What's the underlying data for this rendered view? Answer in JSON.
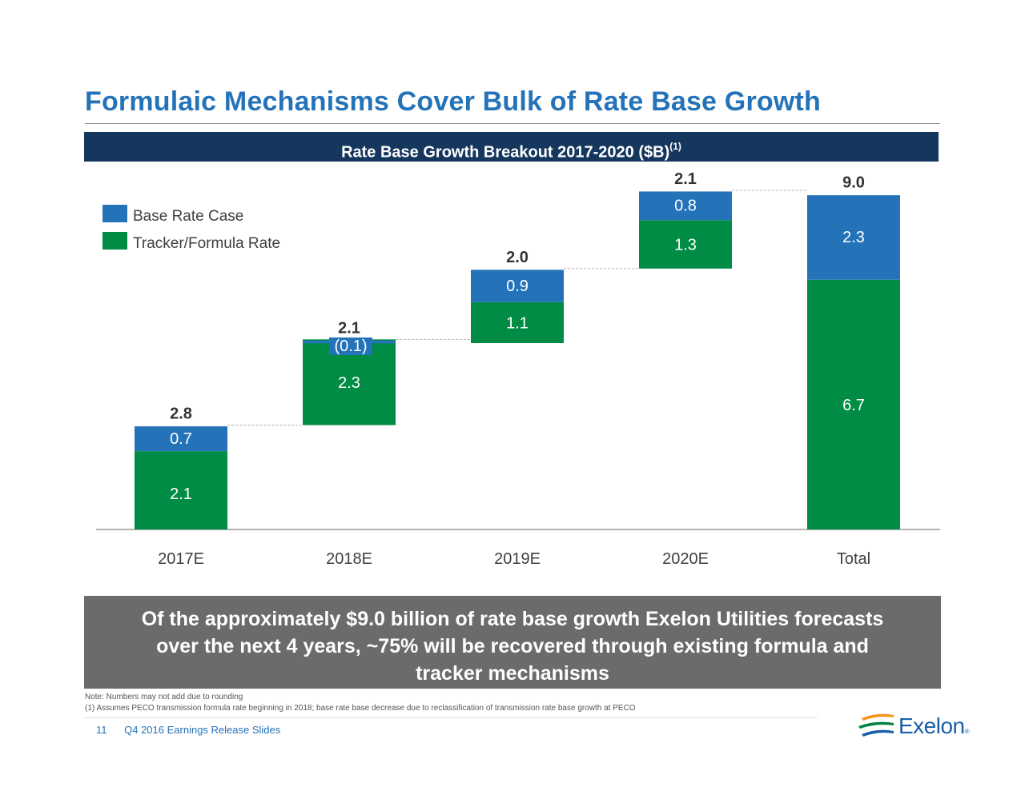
{
  "title": "Formulaic Mechanisms Cover Bulk of Rate Base Growth",
  "chart_banner": {
    "text": "Rate Base Growth Breakout 2017-2020 ($B)",
    "footnote_ref": "(1)"
  },
  "colors": {
    "base_rate": "#2473b9",
    "tracker": "#008c45",
    "banner": "#15365d",
    "callout": "#6b6b6b"
  },
  "chart_data": {
    "type": "bar",
    "subtype": "stacked waterfall",
    "title": "Rate Base Growth Breakout 2017-2020 ($B)",
    "categories": [
      "2017E",
      "2018E",
      "2019E",
      "2020E",
      "Total"
    ],
    "series": [
      {
        "name": "Tracker/Formula Rate",
        "values": [
          2.1,
          2.3,
          1.1,
          1.3,
          6.7
        ],
        "labels": [
          "2.1",
          "2.3",
          "1.1",
          "1.3",
          "6.7"
        ]
      },
      {
        "name": "Base Rate Case",
        "values": [
          0.7,
          -0.1,
          0.9,
          0.8,
          2.3
        ],
        "labels": [
          "0.7",
          "(0.1)",
          "0.9",
          "0.8",
          "2.3"
        ]
      }
    ],
    "totals": [
      2.8,
      2.1,
      2.0,
      2.1,
      9.0
    ],
    "total_labels": [
      "2.8",
      "2.1",
      "2.0",
      "2.1",
      "9.0"
    ],
    "ylim": [
      0,
      9.2
    ],
    "legend": {
      "position": "top-left",
      "entries": [
        "Base Rate Case",
        "Tracker/Formula Rate"
      ]
    },
    "xlabel": "",
    "ylabel": ""
  },
  "callout": {
    "line1": "Of the approximately $9.0 billion of rate base growth Exelon Utilities forecasts",
    "line2": "over the next 4 years, ~75% will be recovered through existing formula and",
    "line3": "tracker mechanisms"
  },
  "notes": {
    "note": "Note: Numbers may not add due to rounding",
    "footnote": "(1) Assumes PECO transmission formula rate beginning in 2018; base rate base decrease due to reclassification of transmission rate base growth at PECO"
  },
  "footer": {
    "page": "11",
    "text": "Q4 2016  Earnings Release Slides"
  },
  "logo": {
    "name": "Exelon",
    "mark": "®"
  }
}
